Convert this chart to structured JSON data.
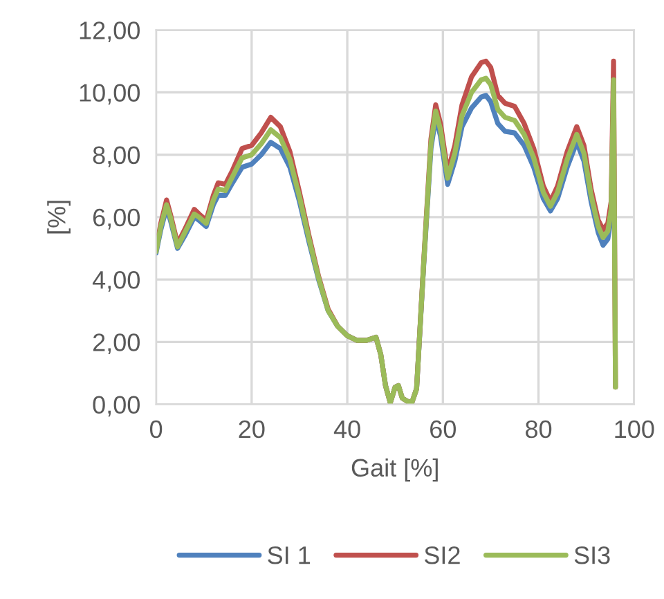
{
  "chart_data": {
    "type": "line",
    "xlabel": "Gait [%]",
    "ylabel": "[%]",
    "x": [
      0,
      1,
      2.2,
      3,
      4.5,
      6,
      8,
      9,
      10.5,
      12,
      13,
      14.5,
      16,
      18,
      20,
      22,
      24,
      26,
      28,
      30,
      32,
      34,
      36,
      38,
      40,
      42,
      44,
      46,
      47,
      48,
      49,
      50,
      50.7,
      51.5,
      52.5,
      53.5,
      54.5,
      56,
      57.5,
      58.5,
      59.5,
      61,
      62.5,
      64,
      66,
      68,
      69,
      70,
      71.5,
      73,
      75,
      77,
      79,
      81,
      82.5,
      84,
      86,
      88,
      89.5,
      91,
      92.5,
      93.5,
      94.5,
      95.2,
      95.7,
      96.1
    ],
    "series": [
      {
        "name": "SI 1",
        "color": "#4f81bd",
        "values": [
          4.85,
          5.6,
          6.3,
          5.9,
          5.0,
          5.4,
          6.0,
          5.9,
          5.7,
          6.4,
          6.7,
          6.7,
          7.1,
          7.6,
          7.7,
          8.0,
          8.4,
          8.2,
          7.6,
          6.5,
          5.2,
          4.0,
          3.0,
          2.5,
          2.2,
          2.05,
          2.05,
          2.15,
          1.6,
          0.6,
          0.05,
          0.55,
          0.6,
          0.2,
          0.1,
          0.05,
          0.5,
          4.5,
          8.2,
          9.2,
          8.6,
          7.05,
          7.8,
          8.9,
          9.5,
          9.85,
          9.9,
          9.7,
          9.0,
          8.75,
          8.7,
          8.3,
          7.6,
          6.6,
          6.2,
          6.6,
          7.6,
          8.4,
          7.8,
          6.5,
          5.5,
          5.1,
          5.3,
          6.0,
          null,
          null
        ]
      },
      {
        "name": "SI2",
        "color": "#c0504d",
        "values": [
          4.95,
          5.8,
          6.55,
          6.1,
          5.15,
          5.6,
          6.25,
          6.1,
          5.9,
          6.7,
          7.1,
          7.05,
          7.5,
          8.2,
          8.3,
          8.7,
          9.2,
          8.9,
          8.1,
          6.8,
          5.4,
          4.1,
          3.05,
          2.5,
          2.2,
          2.05,
          2.05,
          2.15,
          1.6,
          0.6,
          0.05,
          0.55,
          0.6,
          0.2,
          0.1,
          0.05,
          0.5,
          4.6,
          8.5,
          9.6,
          9.0,
          7.45,
          8.3,
          9.6,
          10.5,
          10.95,
          11.0,
          10.8,
          9.9,
          9.65,
          9.55,
          9.0,
          8.2,
          7.0,
          6.5,
          7.0,
          8.1,
          8.9,
          8.3,
          6.9,
          5.9,
          5.6,
          5.8,
          6.5,
          11.0,
          0.55
        ]
      },
      {
        "name": "SI3",
        "color": "#9bbb59",
        "values": [
          4.9,
          5.7,
          6.4,
          6.0,
          5.05,
          5.5,
          6.1,
          6.0,
          5.8,
          6.55,
          6.9,
          6.85,
          7.3,
          7.9,
          8.0,
          8.35,
          8.8,
          8.55,
          7.85,
          6.65,
          5.3,
          4.05,
          3.0,
          2.5,
          2.2,
          2.05,
          2.05,
          2.15,
          1.6,
          0.6,
          0.05,
          0.55,
          0.6,
          0.2,
          0.1,
          0.05,
          0.5,
          4.55,
          8.35,
          9.4,
          8.8,
          7.25,
          8.05,
          9.25,
          10.0,
          10.4,
          10.45,
          10.25,
          9.45,
          9.2,
          9.1,
          8.65,
          7.9,
          6.8,
          6.35,
          6.8,
          7.85,
          8.65,
          8.05,
          6.7,
          5.7,
          5.35,
          5.55,
          6.25,
          10.4,
          0.55
        ]
      }
    ],
    "xlim": [
      0,
      100
    ],
    "xticks": [
      0,
      20,
      40,
      60,
      80,
      100
    ],
    "ylim": [
      0,
      12
    ],
    "yticks": [
      {
        "value": 0,
        "label": "0,00"
      },
      {
        "value": 2,
        "label": "2,00"
      },
      {
        "value": 4,
        "label": "4,00"
      },
      {
        "value": 6,
        "label": "6,00"
      },
      {
        "value": 8,
        "label": "8,00"
      },
      {
        "value": 10,
        "label": "10,00"
      },
      {
        "value": 12,
        "label": "12,00"
      }
    ],
    "grid": true,
    "legend": "bottom",
    "marker": "none",
    "line_style": "solid"
  }
}
